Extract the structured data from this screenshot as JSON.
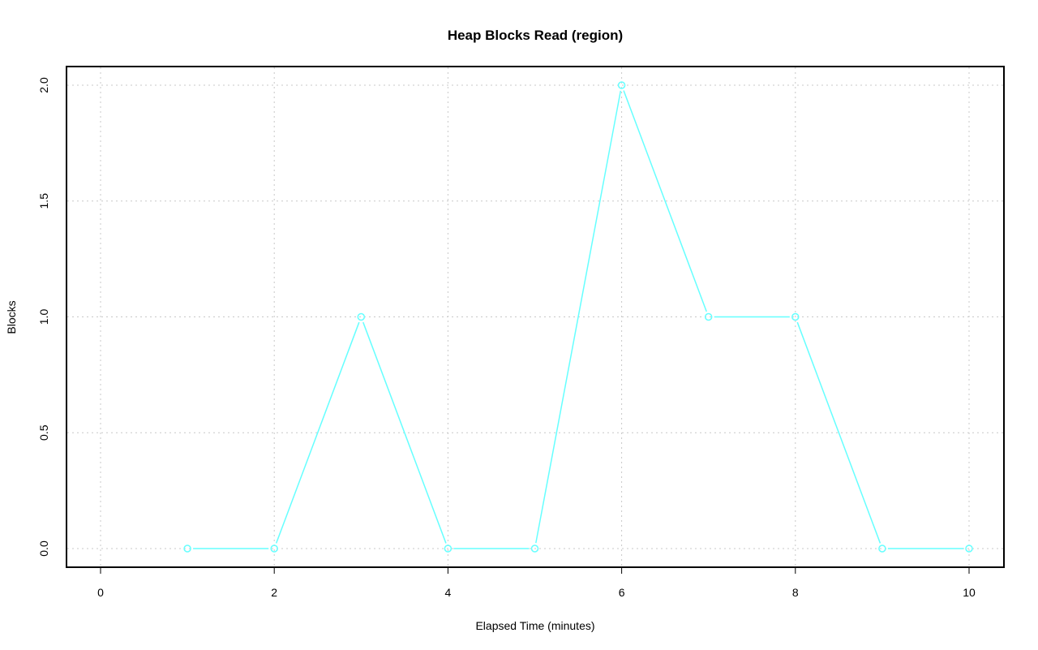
{
  "chart_data": {
    "type": "line",
    "title": "Heap Blocks Read (region)",
    "xlabel": "Elapsed Time (minutes)",
    "ylabel": "Blocks",
    "x": [
      1,
      2,
      3,
      4,
      5,
      6,
      7,
      8,
      9,
      10
    ],
    "series": [
      {
        "values": [
          0,
          0,
          1,
          0,
          0,
          2,
          1,
          1,
          0,
          0
        ],
        "color": "#66ffff"
      }
    ],
    "xlim": [
      0,
      10
    ],
    "ylim": [
      0,
      2
    ],
    "xticks": [
      "0",
      "2",
      "4",
      "6",
      "8",
      "10"
    ],
    "yticks": [
      "0.0",
      "0.5",
      "1.0",
      "1.5",
      "2.0"
    ],
    "grid": true,
    "markers": "open-circle"
  }
}
